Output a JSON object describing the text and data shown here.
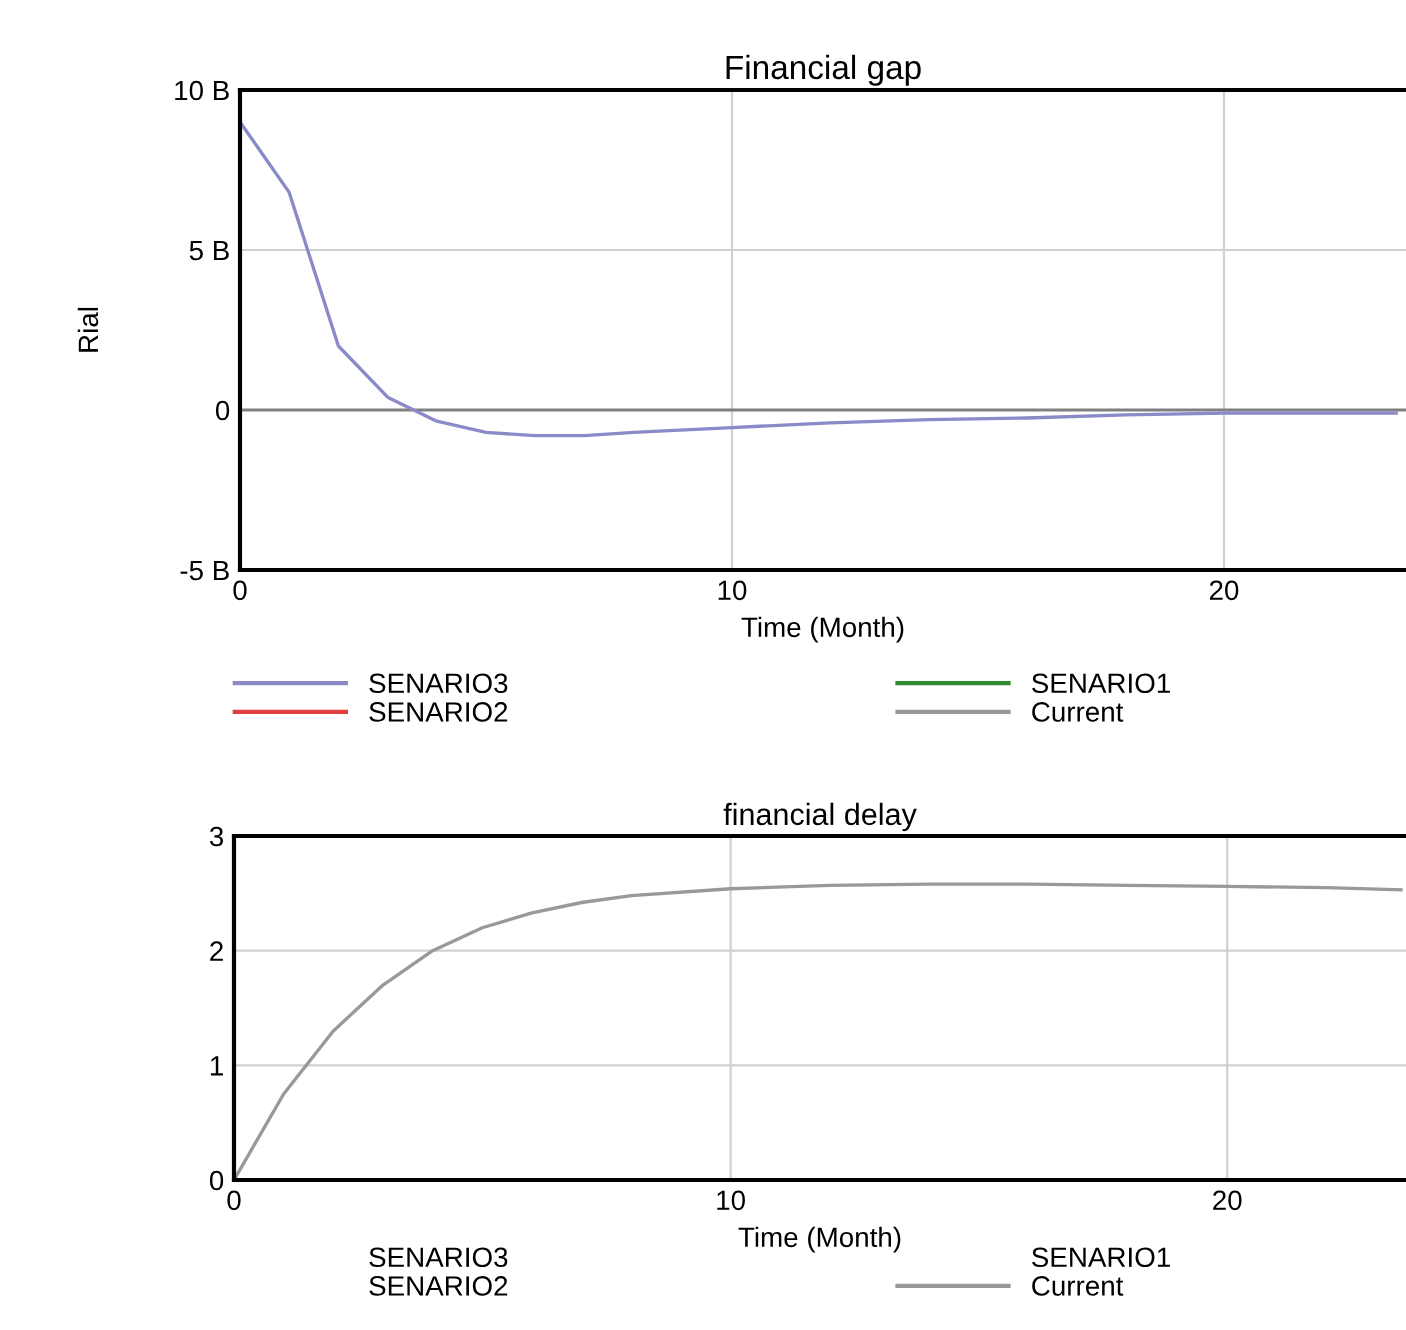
{
  "chart_data": [
    {
      "type": "line",
      "title": "Financial gap",
      "xlabel": "Time (Month)",
      "ylabel": "Rial",
      "x": [
        0,
        1,
        2,
        3,
        4,
        5,
        6,
        7,
        8,
        10,
        12,
        14,
        16,
        18,
        20,
        22,
        23.5
      ],
      "series": [
        {
          "name": "SENARIO3",
          "color": "#8a8ac8",
          "values": [
            9,
            6.8,
            2.0,
            0.4,
            -0.35,
            -0.7,
            -0.8,
            -0.8,
            -0.7,
            -0.55,
            -0.4,
            -0.3,
            -0.25,
            -0.15,
            -0.1,
            -0.1,
            -0.1
          ]
        },
        {
          "name": "SENARIO2",
          "color": "#e04040",
          "values": [
            null,
            null,
            null,
            null,
            null,
            null,
            null,
            null,
            null,
            null,
            null,
            null,
            null,
            null,
            null,
            null,
            null
          ]
        },
        {
          "name": "SENARIO1",
          "color": "#2e8b2e",
          "values": [
            null,
            null,
            null,
            null,
            null,
            null,
            null,
            null,
            null,
            null,
            null,
            null,
            null,
            null,
            null,
            null,
            null
          ]
        },
        {
          "name": "Current",
          "color": "#999999",
          "values": [
            null,
            null,
            null,
            null,
            null,
            null,
            null,
            null,
            null,
            null,
            null,
            null,
            null,
            null,
            null,
            null,
            null
          ]
        }
      ],
      "xlim": [
        0,
        23.7
      ],
      "xticks": [
        0,
        10,
        20
      ],
      "ylim": [
        -5,
        10
      ],
      "yticks": [
        {
          "value": -5,
          "label": "-5 B"
        },
        0,
        {
          "value": 5,
          "label": "5 B"
        },
        {
          "value": 10,
          "label": "10 B"
        }
      ],
      "ref_lines": [
        {
          "axis": "y",
          "value": 0,
          "color": "#808080"
        }
      ],
      "grid": true,
      "legend": "bottom",
      "marker": "none",
      "line_style": "solid"
    },
    {
      "type": "line",
      "title": "financial delay",
      "xlabel": "Time (Month)",
      "x": [
        0,
        1,
        2,
        3,
        4,
        5,
        6,
        7,
        8,
        10,
        12,
        14,
        16,
        18,
        20,
        22,
        23.5
      ],
      "series": [
        {
          "name": "SENARIO3",
          "values": [
            null,
            null,
            null,
            null,
            null,
            null,
            null,
            null,
            null,
            null,
            null,
            null,
            null,
            null,
            null,
            null,
            null
          ]
        },
        {
          "name": "SENARIO2",
          "values": [
            null,
            null,
            null,
            null,
            null,
            null,
            null,
            null,
            null,
            null,
            null,
            null,
            null,
            null,
            null,
            null,
            null
          ]
        },
        {
          "name": "SENARIO1",
          "values": [
            null,
            null,
            null,
            null,
            null,
            null,
            null,
            null,
            null,
            null,
            null,
            null,
            null,
            null,
            null,
            null,
            null
          ]
        },
        {
          "name": "Current",
          "color": "#999999",
          "values": [
            0,
            0.75,
            1.3,
            1.7,
            2.0,
            2.2,
            2.33,
            2.42,
            2.48,
            2.54,
            2.57,
            2.58,
            2.58,
            2.57,
            2.56,
            2.55,
            2.53
          ]
        }
      ],
      "xlim": [
        0,
        23.6
      ],
      "xticks": [
        0,
        10,
        20
      ],
      "ylim": [
        0,
        3
      ],
      "yticks": [
        0,
        1,
        2,
        3
      ],
      "grid": true,
      "legend": "bottom",
      "marker": "none",
      "line_style": "solid"
    }
  ]
}
